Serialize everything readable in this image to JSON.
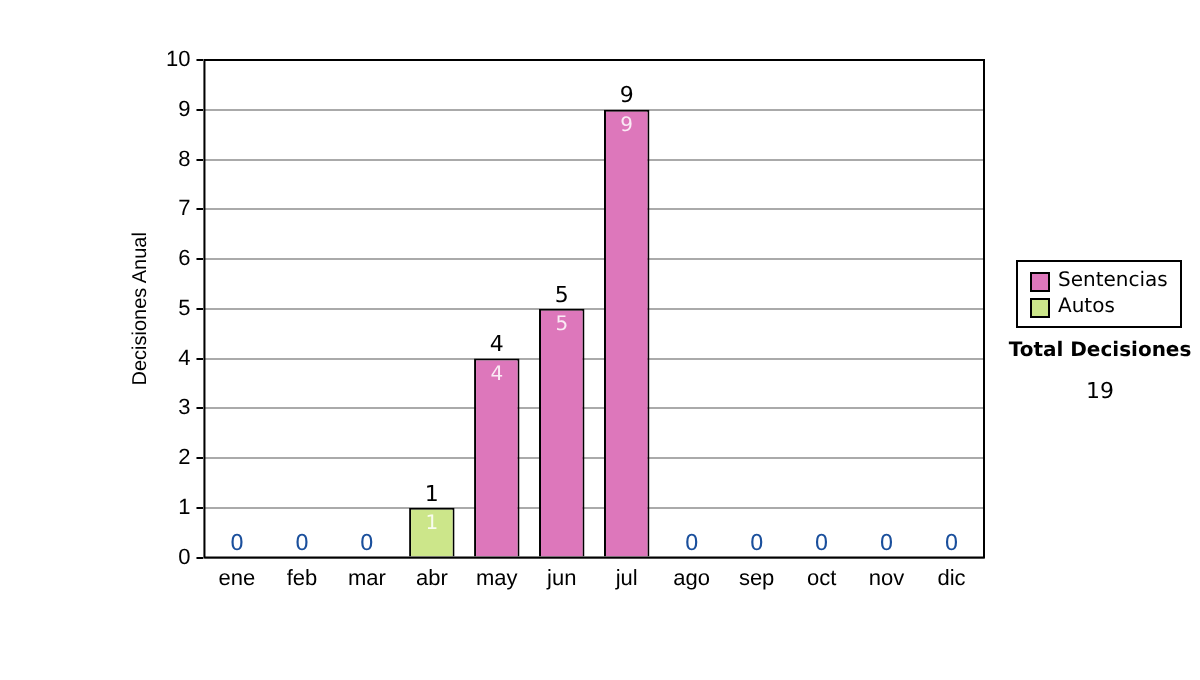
{
  "chart_data": {
    "type": "bar",
    "ylabel": "Decisiones Anual",
    "categories": [
      "ene",
      "feb",
      "mar",
      "abr",
      "may",
      "jun",
      "jul",
      "ago",
      "sep",
      "oct",
      "nov",
      "dic"
    ],
    "stacked": true,
    "series": [
      {
        "name": "Sentencias",
        "color": "#dd77bb",
        "values": [
          0,
          0,
          0,
          0,
          4,
          5,
          9,
          0,
          0,
          0,
          0,
          0
        ],
        "value_labels": [
          null,
          null,
          null,
          null,
          "4",
          "5",
          "9",
          null,
          null,
          null,
          null,
          null
        ]
      },
      {
        "name": "Autos",
        "color": "#cce68a",
        "values": [
          0,
          0,
          0,
          1,
          0,
          0,
          0,
          0,
          0,
          0,
          0,
          0
        ],
        "value_labels": [
          null,
          null,
          null,
          "1",
          null,
          null,
          null,
          null,
          null,
          null,
          null,
          null
        ]
      }
    ],
    "totals": [
      "0",
      "0",
      "0",
      "1",
      "4",
      "5",
      "9",
      "0",
      "0",
      "0",
      "0",
      "0"
    ],
    "ylim": [
      0,
      10
    ],
    "yticks": [
      0,
      1,
      2,
      3,
      4,
      5,
      6,
      7,
      8,
      9,
      10
    ],
    "grid": "y",
    "legend": "right",
    "annotations": [
      "Total Decisiones",
      "19"
    ]
  }
}
